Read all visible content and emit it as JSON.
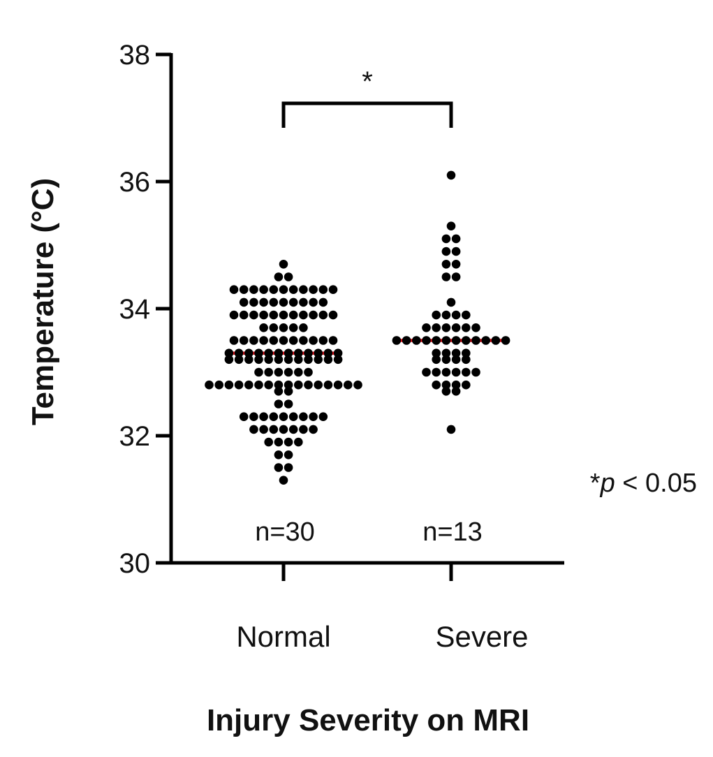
{
  "chart_data": {
    "type": "scatter",
    "subtype": "dot-plot",
    "xlabel": "Injury Severity on MRI",
    "ylabel": "Temperature (°C)",
    "ylim": [
      30,
      38
    ],
    "yticks": [
      30,
      32,
      34,
      36,
      38
    ],
    "categories": [
      "Normal",
      "Severe"
    ],
    "sample_sizes": [
      "n=30",
      "n=13"
    ],
    "median_line_color": "#e8121b",
    "point_color": "#000000",
    "significance": {
      "marker": "*",
      "between": [
        "Normal",
        "Severe"
      ],
      "note_star": "*",
      "note_p": "p",
      "note_rest": " < 0.05"
    },
    "series": [
      {
        "name": "Normal",
        "median": 33.3,
        "bins": [
          {
            "y": 34.7,
            "count": 1
          },
          {
            "y": 34.5,
            "count": 2
          },
          {
            "y": 34.3,
            "count": 11
          },
          {
            "y": 34.1,
            "count": 9
          },
          {
            "y": 33.9,
            "count": 11
          },
          {
            "y": 33.7,
            "count": 5
          },
          {
            "y": 33.5,
            "count": 11
          },
          {
            "y": 33.3,
            "count": 12
          },
          {
            "y": 33.2,
            "count": 12
          },
          {
            "y": 33.0,
            "count": 6
          },
          {
            "y": 32.8,
            "count": 16
          },
          {
            "y": 32.7,
            "count": 2
          },
          {
            "y": 32.5,
            "count": 2
          },
          {
            "y": 32.3,
            "count": 9
          },
          {
            "y": 32.1,
            "count": 7
          },
          {
            "y": 31.9,
            "count": 4
          },
          {
            "y": 31.7,
            "count": 2
          },
          {
            "y": 31.5,
            "count": 2
          },
          {
            "y": 31.3,
            "count": 1
          }
        ]
      },
      {
        "name": "Severe",
        "median": 33.5,
        "bins": [
          {
            "y": 36.1,
            "count": 1
          },
          {
            "y": 35.3,
            "count": 1
          },
          {
            "y": 35.1,
            "count": 2
          },
          {
            "y": 34.9,
            "count": 2
          },
          {
            "y": 34.7,
            "count": 2
          },
          {
            "y": 34.5,
            "count": 2
          },
          {
            "y": 34.1,
            "count": 1
          },
          {
            "y": 33.9,
            "count": 4
          },
          {
            "y": 33.7,
            "count": 6
          },
          {
            "y": 33.5,
            "count": 12
          },
          {
            "y": 33.3,
            "count": 4
          },
          {
            "y": 33.2,
            "count": 4
          },
          {
            "y": 33.0,
            "count": 6
          },
          {
            "y": 32.8,
            "count": 4
          },
          {
            "y": 32.7,
            "count": 2
          },
          {
            "y": 32.1,
            "count": 1
          }
        ]
      }
    ]
  }
}
